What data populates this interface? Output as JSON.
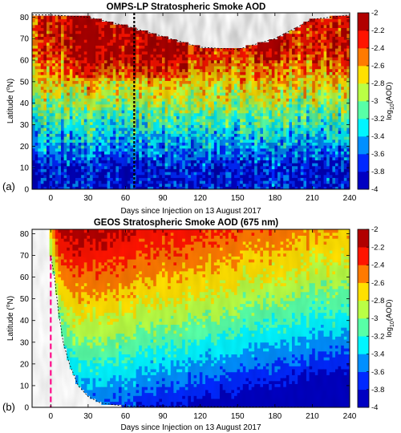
{
  "chart_data": [
    {
      "panel_label": "(a)",
      "type": "heatmap",
      "title": "OMPS-LP Stratospheric Smoke AOD",
      "xlabel": "Days since Injection on 13 August 2017",
      "ylabel_parts": [
        "Latitude (",
        "o",
        "N)"
      ],
      "xlim": [
        -15,
        240
      ],
      "ylim": [
        0,
        82
      ],
      "xticks": [
        "0",
        "30",
        "60",
        "90",
        "120",
        "150",
        "180",
        "210",
        "240"
      ],
      "yticks": [
        "0",
        "10",
        "20",
        "30",
        "40",
        "50",
        "60",
        "70",
        "80"
      ],
      "colorbar": {
        "label_parts": [
          "log",
          "10",
          "(AOD)"
        ],
        "range": [
          -4,
          -2
        ],
        "ticks": [
          "-2",
          "-2.2",
          "-2.4",
          "-2.6",
          "-2.8",
          "-3",
          "-3.2",
          "-3.4",
          "-3.6",
          "-3.8",
          "-4"
        ]
      },
      "features": {
        "data_gap_vertical_line_day": 67,
        "high_lat_coverage_boundary": [
          [
            -15,
            81
          ],
          [
            0,
            81
          ],
          [
            30,
            80
          ],
          [
            60,
            76
          ],
          [
            90,
            71
          ],
          [
            120,
            66
          ],
          [
            150,
            65
          ],
          [
            180,
            70
          ],
          [
            210,
            79
          ],
          [
            240,
            81
          ]
        ]
      }
    },
    {
      "panel_label": "(b)",
      "type": "heatmap",
      "title": "GEOS Stratospheric Smoke AOD (675 nm)",
      "xlabel": "Days since Injection on 13 August 2017",
      "ylabel_parts": [
        "Latitude (",
        "o",
        "N)"
      ],
      "xlim": [
        -15,
        240
      ],
      "ylim": [
        0,
        82
      ],
      "xticks": [
        "0",
        "30",
        "60",
        "90",
        "120",
        "150",
        "180",
        "210",
        "240"
      ],
      "yticks": [
        "0",
        "10",
        "20",
        "30",
        "40",
        "50",
        "60",
        "70",
        "80"
      ],
      "colorbar": {
        "label_parts": [
          "log",
          "10",
          "(AOD)"
        ],
        "range": [
          -4,
          -2
        ],
        "ticks": [
          "-2",
          "-2.2",
          "-2.4",
          "-2.6",
          "-2.8",
          "-3",
          "-3.2",
          "-3.4",
          "-3.6",
          "-3.8",
          "-4"
        ]
      },
      "features": {
        "injection_day_marker": 0,
        "smoke_front_southern_edge": [
          [
            0,
            70
          ],
          [
            3,
            60
          ],
          [
            6,
            45
          ],
          [
            10,
            30
          ],
          [
            15,
            20
          ],
          [
            22,
            10
          ],
          [
            30,
            5
          ],
          [
            40,
            2
          ],
          [
            60,
            0.5
          ],
          [
            240,
            0
          ]
        ]
      }
    }
  ]
}
